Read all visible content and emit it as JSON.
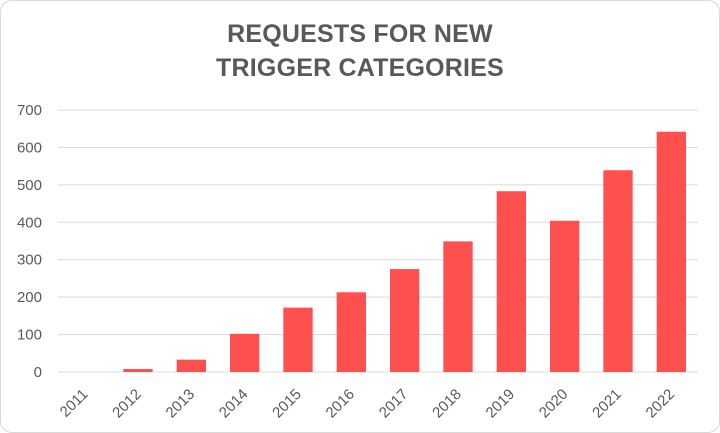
{
  "chart_data": {
    "type": "bar",
    "title_lines": [
      "REQUESTS FOR NEW",
      "TRIGGER CATEGORIES"
    ],
    "categories": [
      "2011",
      "2012",
      "2013",
      "2014",
      "2015",
      "2016",
      "2017",
      "2018",
      "2019",
      "2020",
      "2021",
      "2022"
    ],
    "values": [
      0,
      8,
      33,
      102,
      172,
      213,
      275,
      349,
      483,
      404,
      539,
      642
    ],
    "ylim": [
      0,
      700
    ],
    "yticks": [
      "0",
      "100",
      "200",
      "300",
      "400",
      "500",
      "600",
      "700"
    ],
    "grid": true,
    "legend": "none",
    "bar_color": "#ff5050",
    "grid_color": "#d9d9d9"
  }
}
